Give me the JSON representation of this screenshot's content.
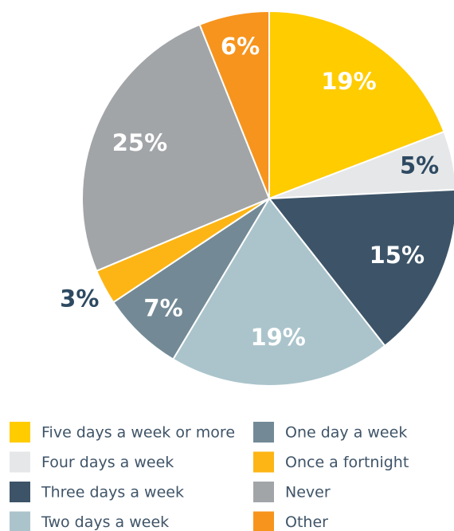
{
  "chart_data": {
    "type": "pie",
    "categories": [
      "Five days a week or more",
      "Four days a week",
      "Three days a week",
      "Two days a week",
      "One day a week",
      "Once a fortnight",
      "Never",
      "Other"
    ],
    "values": [
      19,
      5,
      15,
      19,
      7,
      3,
      25,
      6
    ],
    "value_labels": [
      "19%",
      "5%",
      "15%",
      "19%",
      "7%",
      "3%",
      "25%",
      "6%"
    ],
    "colors": [
      "#ffcc00",
      "#e6e7e8",
      "#3d5468",
      "#abc4cc",
      "#738a96",
      "#fdb515",
      "#a2a5a8",
      "#f7941d"
    ],
    "legend": "bottom"
  }
}
